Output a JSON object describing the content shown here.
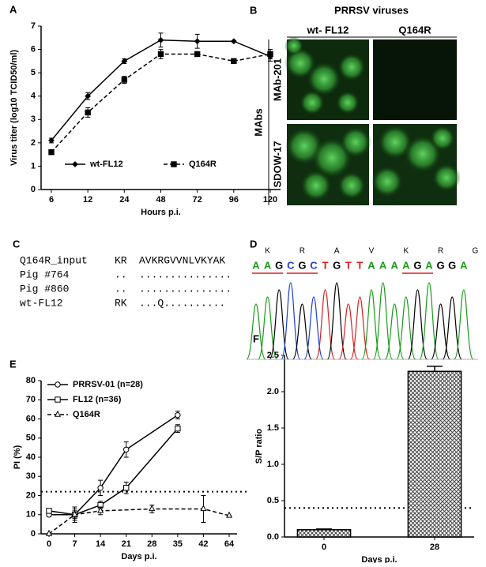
{
  "chart_data": [
    {
      "type": "line",
      "label": "A",
      "xlabel": "Hours p.i.",
      "ylabel": "Virus titer (log10 TCID50/ml)",
      "categories": [
        6,
        12,
        24,
        48,
        72,
        96,
        120
      ],
      "ylim": [
        0,
        7
      ],
      "yticks": [
        0,
        1,
        2,
        3,
        4,
        5,
        6,
        7
      ],
      "legend": "lower center",
      "series": [
        {
          "name": "wt-FL12",
          "color": "#000000",
          "marker": "diamond",
          "dash": false,
          "values": [
            2.1,
            4.0,
            5.5,
            6.4,
            6.35,
            6.35,
            5.7
          ],
          "errors": [
            0.1,
            0.15,
            0.1,
            0.3,
            0.3,
            0.02,
            0.2
          ]
        },
        {
          "name": "Q164R",
          "color": "#000000",
          "marker": "square",
          "dash": true,
          "values": [
            1.6,
            3.3,
            4.7,
            5.8,
            5.8,
            5.5,
            5.8
          ],
          "errors": [
            0.05,
            0.2,
            0.15,
            0.2,
            0.1,
            0.1,
            0.2
          ]
        }
      ]
    },
    {
      "type": "line",
      "label": "E",
      "xlabel": "Days p.i.",
      "ylabel": "PI (%)",
      "categories": [
        0,
        7,
        14,
        21,
        28,
        35,
        42,
        64
      ],
      "ylim": [
        0,
        80
      ],
      "yticks": [
        0,
        10,
        20,
        30,
        40,
        50,
        60,
        70,
        80
      ],
      "threshold": 22,
      "legend": "upper left",
      "series": [
        {
          "name": "PRRSV-01 (n=28)",
          "color": "#000000",
          "marker": "circle",
          "dash": false,
          "x": [
            0,
            7,
            14,
            21,
            35
          ],
          "values": [
            10,
            10,
            24,
            44,
            62
          ],
          "errors": [
            1,
            3,
            4,
            4,
            2
          ]
        },
        {
          "name": "FL12 (n=36)",
          "color": "#000000",
          "marker": "square",
          "dash": false,
          "x": [
            0,
            7,
            14,
            21,
            35
          ],
          "values": [
            12,
            10,
            15,
            24,
            55
          ],
          "errors": [
            1,
            4,
            2,
            3,
            2
          ]
        },
        {
          "name": "Q164R",
          "color": "#000000",
          "marker": "triangle",
          "dash": true,
          "x": [
            0,
            7,
            14,
            28,
            42,
            64
          ],
          "values": [
            0,
            10,
            12,
            13,
            13,
            9.5
          ],
          "errors": [
            0,
            2,
            2,
            2,
            7,
            0
          ]
        }
      ]
    },
    {
      "type": "bar",
      "label": "F",
      "xlabel": "Days p.i.",
      "ylabel": "S/P ratio",
      "categories": [
        0,
        28
      ],
      "values": [
        0.1,
        2.28
      ],
      "errors": [
        0.01,
        0.07
      ],
      "ylim": [
        0,
        2.5
      ],
      "yticks": [
        {
          "value": 0,
          "label": "0.0"
        },
        0.5,
        {
          "value": 1,
          "label": "1.0"
        },
        1.5,
        {
          "value": 2,
          "label": "2.0"
        },
        2.5
      ],
      "threshold": 0.4,
      "color": "#444444"
    }
  ],
  "figure_panels": {
    "B": {
      "label": "B",
      "title": "PRRSV viruses",
      "columns": [
        "wt- FL12",
        "Q164R"
      ],
      "row_group": "MAbs",
      "rows": [
        "MAb-201",
        "SDOW-17"
      ]
    },
    "C": {
      "label": "C",
      "rows": [
        [
          "Q164R_input",
          "KR",
          "AVKRGVVNLVKYAK"
        ],
        [
          "Pig #764",
          "..",
          "..............."
        ],
        [
          "Pig #860",
          "..",
          "..............."
        ],
        [
          "wt-FL12",
          "RK",
          "...Q.........."
        ]
      ]
    },
    "D": {
      "label": "D",
      "amino_acids": [
        "K",
        "R",
        "A",
        "V",
        "K",
        "R",
        "G"
      ],
      "bases": [
        "A",
        "A",
        "G",
        "C",
        "G",
        "C",
        "T",
        "G",
        "T",
        "T",
        "A",
        "A",
        "A",
        "A",
        "G",
        "A",
        "G",
        "G",
        "A"
      ]
    }
  }
}
